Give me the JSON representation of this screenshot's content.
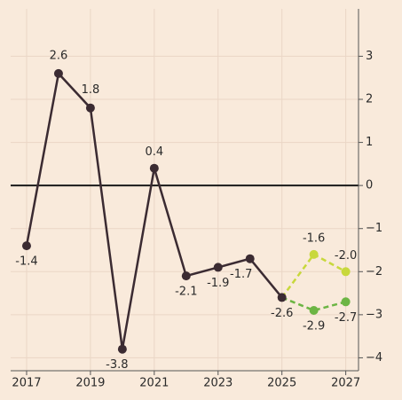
{
  "chart_data": {
    "type": "line",
    "series": [
      {
        "color": "#3b2b32",
        "x": [
          2017,
          2018,
          2019,
          2020,
          2021,
          2022,
          2023,
          2024,
          2025
        ],
        "values": [
          -1.4,
          2.6,
          1.8,
          -3.8,
          0.4,
          -2.1,
          -1.9,
          -1.7,
          -2.6
        ],
        "dashed": false
      },
      {
        "color": "#c8d83c",
        "x": [
          2025,
          2026,
          2027
        ],
        "values": [
          -2.6,
          -1.6,
          -2.0
        ],
        "value_labels": [
          null,
          "-1.6",
          "-2.0"
        ],
        "dashed": true
      },
      {
        "color": "#6cb544",
        "x": [
          2025,
          2026,
          2027
        ],
        "values": [
          -2.6,
          -2.9,
          -2.7
        ],
        "value_labels": [
          null,
          "-2.9",
          "-2.7"
        ],
        "dashed": true
      }
    ],
    "xlim": [
      2016.5,
      2027.4
    ],
    "xticks": [
      2017,
      2019,
      2021,
      2023,
      2025,
      2027
    ],
    "ylim": [
      -4.3,
      4.1
    ],
    "yticks": [
      {
        "value": -4,
        "label": "−4"
      },
      {
        "value": -3,
        "label": "−3"
      },
      {
        "value": -2,
        "label": "−2"
      },
      {
        "value": -1,
        "label": "−1"
      },
      0,
      1,
      2,
      3
    ],
    "grid": true,
    "zero_line": true,
    "y_axis_side": "right"
  }
}
